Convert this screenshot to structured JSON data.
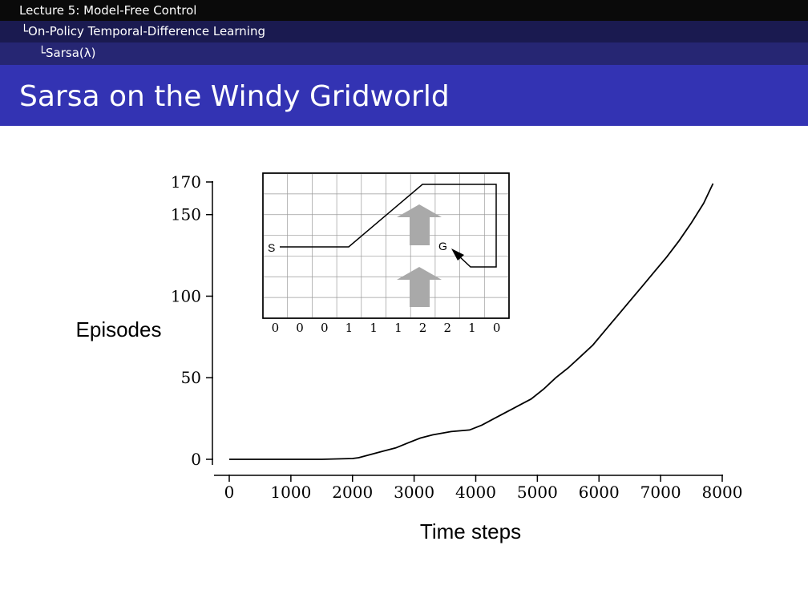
{
  "header": {
    "section": "Lecture 5: Model-Free Control",
    "subsection": "On-Policy Temporal-Difference Learning",
    "subsubsection": "Sarsa(λ)"
  },
  "slide": {
    "title": "Sarsa on the Windy Gridworld"
  },
  "chart_data": {
    "type": "line",
    "title": "",
    "xlabel": "Time steps",
    "ylabel": "Episodes",
    "xlim": [
      0,
      8000
    ],
    "ylim": [
      0,
      170
    ],
    "xticks": [
      0,
      1000,
      2000,
      3000,
      4000,
      5000,
      6000,
      7000,
      8000
    ],
    "yticks": [
      0,
      50,
      100,
      150,
      170
    ],
    "grid": false,
    "series": [
      {
        "x": [
          0,
          1500,
          2000,
          2100,
          2300,
          2500,
          2700,
          2900,
          3100,
          3300,
          3600,
          3900,
          4100,
          4300,
          4600,
          4900,
          5100,
          5300,
          5500,
          5700,
          5900,
          6100,
          6300,
          6500,
          6700,
          6900,
          7100,
          7300,
          7500,
          7700,
          7850
        ],
        "y": [
          0,
          0,
          0.5,
          1,
          3,
          5,
          7,
          10,
          13,
          15,
          17,
          18,
          21,
          25,
          31,
          37,
          43,
          50,
          56,
          63,
          70,
          79,
          88,
          97,
          106,
          115,
          124,
          134,
          145,
          157,
          169
        ]
      }
    ]
  },
  "inset": {
    "start_label": "S",
    "goal_label": "G",
    "wind_strengths": [
      "0",
      "0",
      "0",
      "1",
      "1",
      "1",
      "2",
      "2",
      "1",
      "0"
    ]
  }
}
